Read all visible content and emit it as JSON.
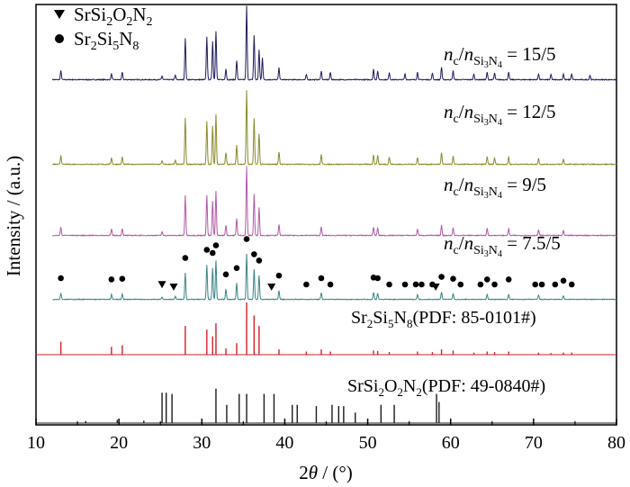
{
  "chart_data": {
    "type": "line",
    "xlabel": "2θ / (°)",
    "ylabel": "Intensity / (a.u.)",
    "xlim": [
      10,
      80
    ],
    "x_ticks": [
      10,
      20,
      30,
      40,
      50,
      60,
      70,
      80
    ],
    "legend": [
      {
        "marker": "triangle-down",
        "label": "SrSi2O2N2"
      },
      {
        "marker": "circle",
        "label": "Sr2Si5N8"
      }
    ],
    "series": [
      {
        "name": "nc/nSi3N4 = 15/5",
        "ratio": "15/5",
        "color": "#1f1d5c",
        "peaks": [
          [
            13.0,
            0.12
          ],
          [
            19.1,
            0.08
          ],
          [
            20.4,
            0.1
          ],
          [
            25.2,
            0.05
          ],
          [
            26.8,
            0.06
          ],
          [
            28.0,
            0.56
          ],
          [
            30.6,
            0.58
          ],
          [
            31.3,
            0.52
          ],
          [
            31.7,
            0.66
          ],
          [
            32.9,
            0.15
          ],
          [
            34.2,
            0.26
          ],
          [
            35.4,
            1.0
          ],
          [
            36.3,
            0.6
          ],
          [
            36.9,
            0.4
          ],
          [
            37.3,
            0.3
          ],
          [
            39.3,
            0.16
          ],
          [
            42.6,
            0.07
          ],
          [
            44.4,
            0.12
          ],
          [
            45.5,
            0.1
          ],
          [
            50.7,
            0.14
          ],
          [
            51.2,
            0.12
          ],
          [
            52.6,
            0.1
          ],
          [
            54.5,
            0.08
          ],
          [
            56.0,
            0.1
          ],
          [
            57.8,
            0.09
          ],
          [
            58.9,
            0.17
          ],
          [
            60.3,
            0.12
          ],
          [
            62.8,
            0.08
          ],
          [
            64.4,
            0.1
          ],
          [
            65.3,
            0.09
          ],
          [
            67.0,
            0.1
          ],
          [
            70.6,
            0.08
          ],
          [
            72.1,
            0.07
          ],
          [
            73.6,
            0.08
          ],
          [
            74.6,
            0.08
          ],
          [
            76.8,
            0.06
          ]
        ]
      },
      {
        "name": "nc/nSi3N4 = 12/5",
        "ratio": "12/5",
        "color": "#8b8b2a",
        "peaks": [
          [
            13.0,
            0.12
          ],
          [
            19.1,
            0.09
          ],
          [
            20.4,
            0.1
          ],
          [
            25.2,
            0.05
          ],
          [
            26.8,
            0.05
          ],
          [
            28.0,
            0.63
          ],
          [
            30.6,
            0.58
          ],
          [
            31.3,
            0.52
          ],
          [
            31.7,
            0.68
          ],
          [
            32.9,
            0.16
          ],
          [
            34.2,
            0.26
          ],
          [
            35.4,
            1.0
          ],
          [
            36.3,
            0.62
          ],
          [
            36.9,
            0.42
          ],
          [
            39.3,
            0.17
          ],
          [
            44.4,
            0.13
          ],
          [
            50.7,
            0.13
          ],
          [
            51.2,
            0.12
          ],
          [
            52.6,
            0.1
          ],
          [
            56.0,
            0.09
          ],
          [
            58.9,
            0.16
          ],
          [
            60.3,
            0.11
          ],
          [
            64.4,
            0.1
          ],
          [
            65.3,
            0.09
          ],
          [
            67.0,
            0.1
          ],
          [
            70.6,
            0.08
          ],
          [
            73.6,
            0.07
          ]
        ]
      },
      {
        "name": "nc/nSi3N4 = 9/5",
        "ratio": "9/5",
        "color": "#b25aa6",
        "peaks": [
          [
            13.0,
            0.12
          ],
          [
            19.1,
            0.09
          ],
          [
            20.4,
            0.1
          ],
          [
            25.2,
            0.05
          ],
          [
            28.0,
            0.58
          ],
          [
            30.6,
            0.58
          ],
          [
            31.3,
            0.5
          ],
          [
            31.7,
            0.64
          ],
          [
            32.9,
            0.15
          ],
          [
            34.2,
            0.25
          ],
          [
            35.4,
            1.0
          ],
          [
            36.3,
            0.6
          ],
          [
            36.9,
            0.4
          ],
          [
            39.3,
            0.16
          ],
          [
            44.4,
            0.12
          ],
          [
            50.7,
            0.12
          ],
          [
            51.2,
            0.11
          ],
          [
            56.0,
            0.09
          ],
          [
            58.9,
            0.15
          ],
          [
            60.3,
            0.11
          ],
          [
            64.4,
            0.1
          ],
          [
            67.0,
            0.1
          ],
          [
            70.6,
            0.08
          ],
          [
            73.6,
            0.07
          ]
        ]
      },
      {
        "name": "nc/nSi3N4 = 7.5/5",
        "ratio": "7.5/5",
        "color": "#3a8587",
        "peaks": [
          [
            13.0,
            0.1
          ],
          [
            19.1,
            0.08
          ],
          [
            20.4,
            0.09
          ],
          [
            25.2,
            0.04
          ],
          [
            26.8,
            0.05
          ],
          [
            28.0,
            0.42
          ],
          [
            30.6,
            0.55
          ],
          [
            31.3,
            0.5
          ],
          [
            31.7,
            0.62
          ],
          [
            32.9,
            0.16
          ],
          [
            34.2,
            0.26
          ],
          [
            35.4,
            0.72
          ],
          [
            36.3,
            0.48
          ],
          [
            36.9,
            0.38
          ],
          [
            39.3,
            0.14
          ],
          [
            44.4,
            0.1
          ],
          [
            50.7,
            0.11
          ],
          [
            51.2,
            0.1
          ],
          [
            56.0,
            0.08
          ],
          [
            58.9,
            0.12
          ],
          [
            60.3,
            0.09
          ],
          [
            64.4,
            0.08
          ],
          [
            67.0,
            0.08
          ],
          [
            70.6,
            0.07
          ],
          [
            73.6,
            0.06
          ]
        ]
      }
    ],
    "reference_patterns": [
      {
        "name": "Sr2Si5N8(PDF: 85-0101#)",
        "color": "#d42026",
        "lines": [
          [
            13.0,
            0.25
          ],
          [
            19.1,
            0.15
          ],
          [
            20.4,
            0.18
          ],
          [
            28.0,
            0.55
          ],
          [
            30.6,
            0.48
          ],
          [
            31.3,
            0.35
          ],
          [
            31.7,
            0.6
          ],
          [
            32.9,
            0.12
          ],
          [
            34.2,
            0.22
          ],
          [
            35.4,
            1.0
          ],
          [
            36.3,
            0.75
          ],
          [
            36.9,
            0.55
          ],
          [
            39.3,
            0.1
          ],
          [
            42.6,
            0.06
          ],
          [
            44.4,
            0.1
          ],
          [
            45.5,
            0.06
          ],
          [
            50.7,
            0.08
          ],
          [
            51.2,
            0.07
          ],
          [
            52.6,
            0.05
          ],
          [
            56.0,
            0.06
          ],
          [
            57.8,
            0.05
          ],
          [
            58.9,
            0.1
          ],
          [
            60.3,
            0.08
          ],
          [
            62.8,
            0.04
          ],
          [
            64.4,
            0.06
          ],
          [
            65.3,
            0.05
          ],
          [
            67.0,
            0.06
          ],
          [
            70.6,
            0.04
          ],
          [
            72.1,
            0.03
          ],
          [
            73.6,
            0.04
          ],
          [
            74.6,
            0.04
          ]
        ]
      },
      {
        "name": "SrSi2O2N2(PDF: 49-0840#)",
        "color": "#1a1a1a",
        "lines": [
          [
            16.0,
            0.05
          ],
          [
            19.8,
            0.08
          ],
          [
            23.0,
            0.06
          ],
          [
            25.2,
            0.75
          ],
          [
            25.7,
            0.75
          ],
          [
            26.4,
            0.72
          ],
          [
            31.7,
            0.85
          ],
          [
            33.0,
            0.45
          ],
          [
            34.5,
            0.72
          ],
          [
            35.4,
            0.72
          ],
          [
            37.5,
            0.72
          ],
          [
            38.7,
            0.72
          ],
          [
            40.9,
            0.45
          ],
          [
            41.5,
            0.45
          ],
          [
            43.8,
            0.42
          ],
          [
            45.7,
            0.45
          ],
          [
            46.5,
            0.42
          ],
          [
            47.1,
            0.42
          ],
          [
            48.5,
            0.26
          ],
          [
            51.6,
            0.45
          ],
          [
            53.2,
            0.45
          ],
          [
            58.3,
            0.72
          ],
          [
            58.6,
            0.52
          ]
        ]
      }
    ],
    "markers": {
      "circle": [
        13.0,
        19.1,
        20.4,
        28.0,
        30.6,
        31.3,
        31.7,
        32.9,
        34.2,
        35.4,
        36.3,
        36.9,
        39.3,
        42.6,
        44.4,
        45.5,
        50.7,
        51.2,
        52.6,
        54.5,
        55.8,
        56.5,
        57.8,
        58.9,
        60.3,
        61.2,
        63.6,
        64.4,
        65.3,
        67.0,
        70.2,
        71.0,
        72.6,
        73.6,
        74.6
      ],
      "triangle": [
        25.2,
        26.6,
        38.4,
        58.2
      ]
    }
  }
}
